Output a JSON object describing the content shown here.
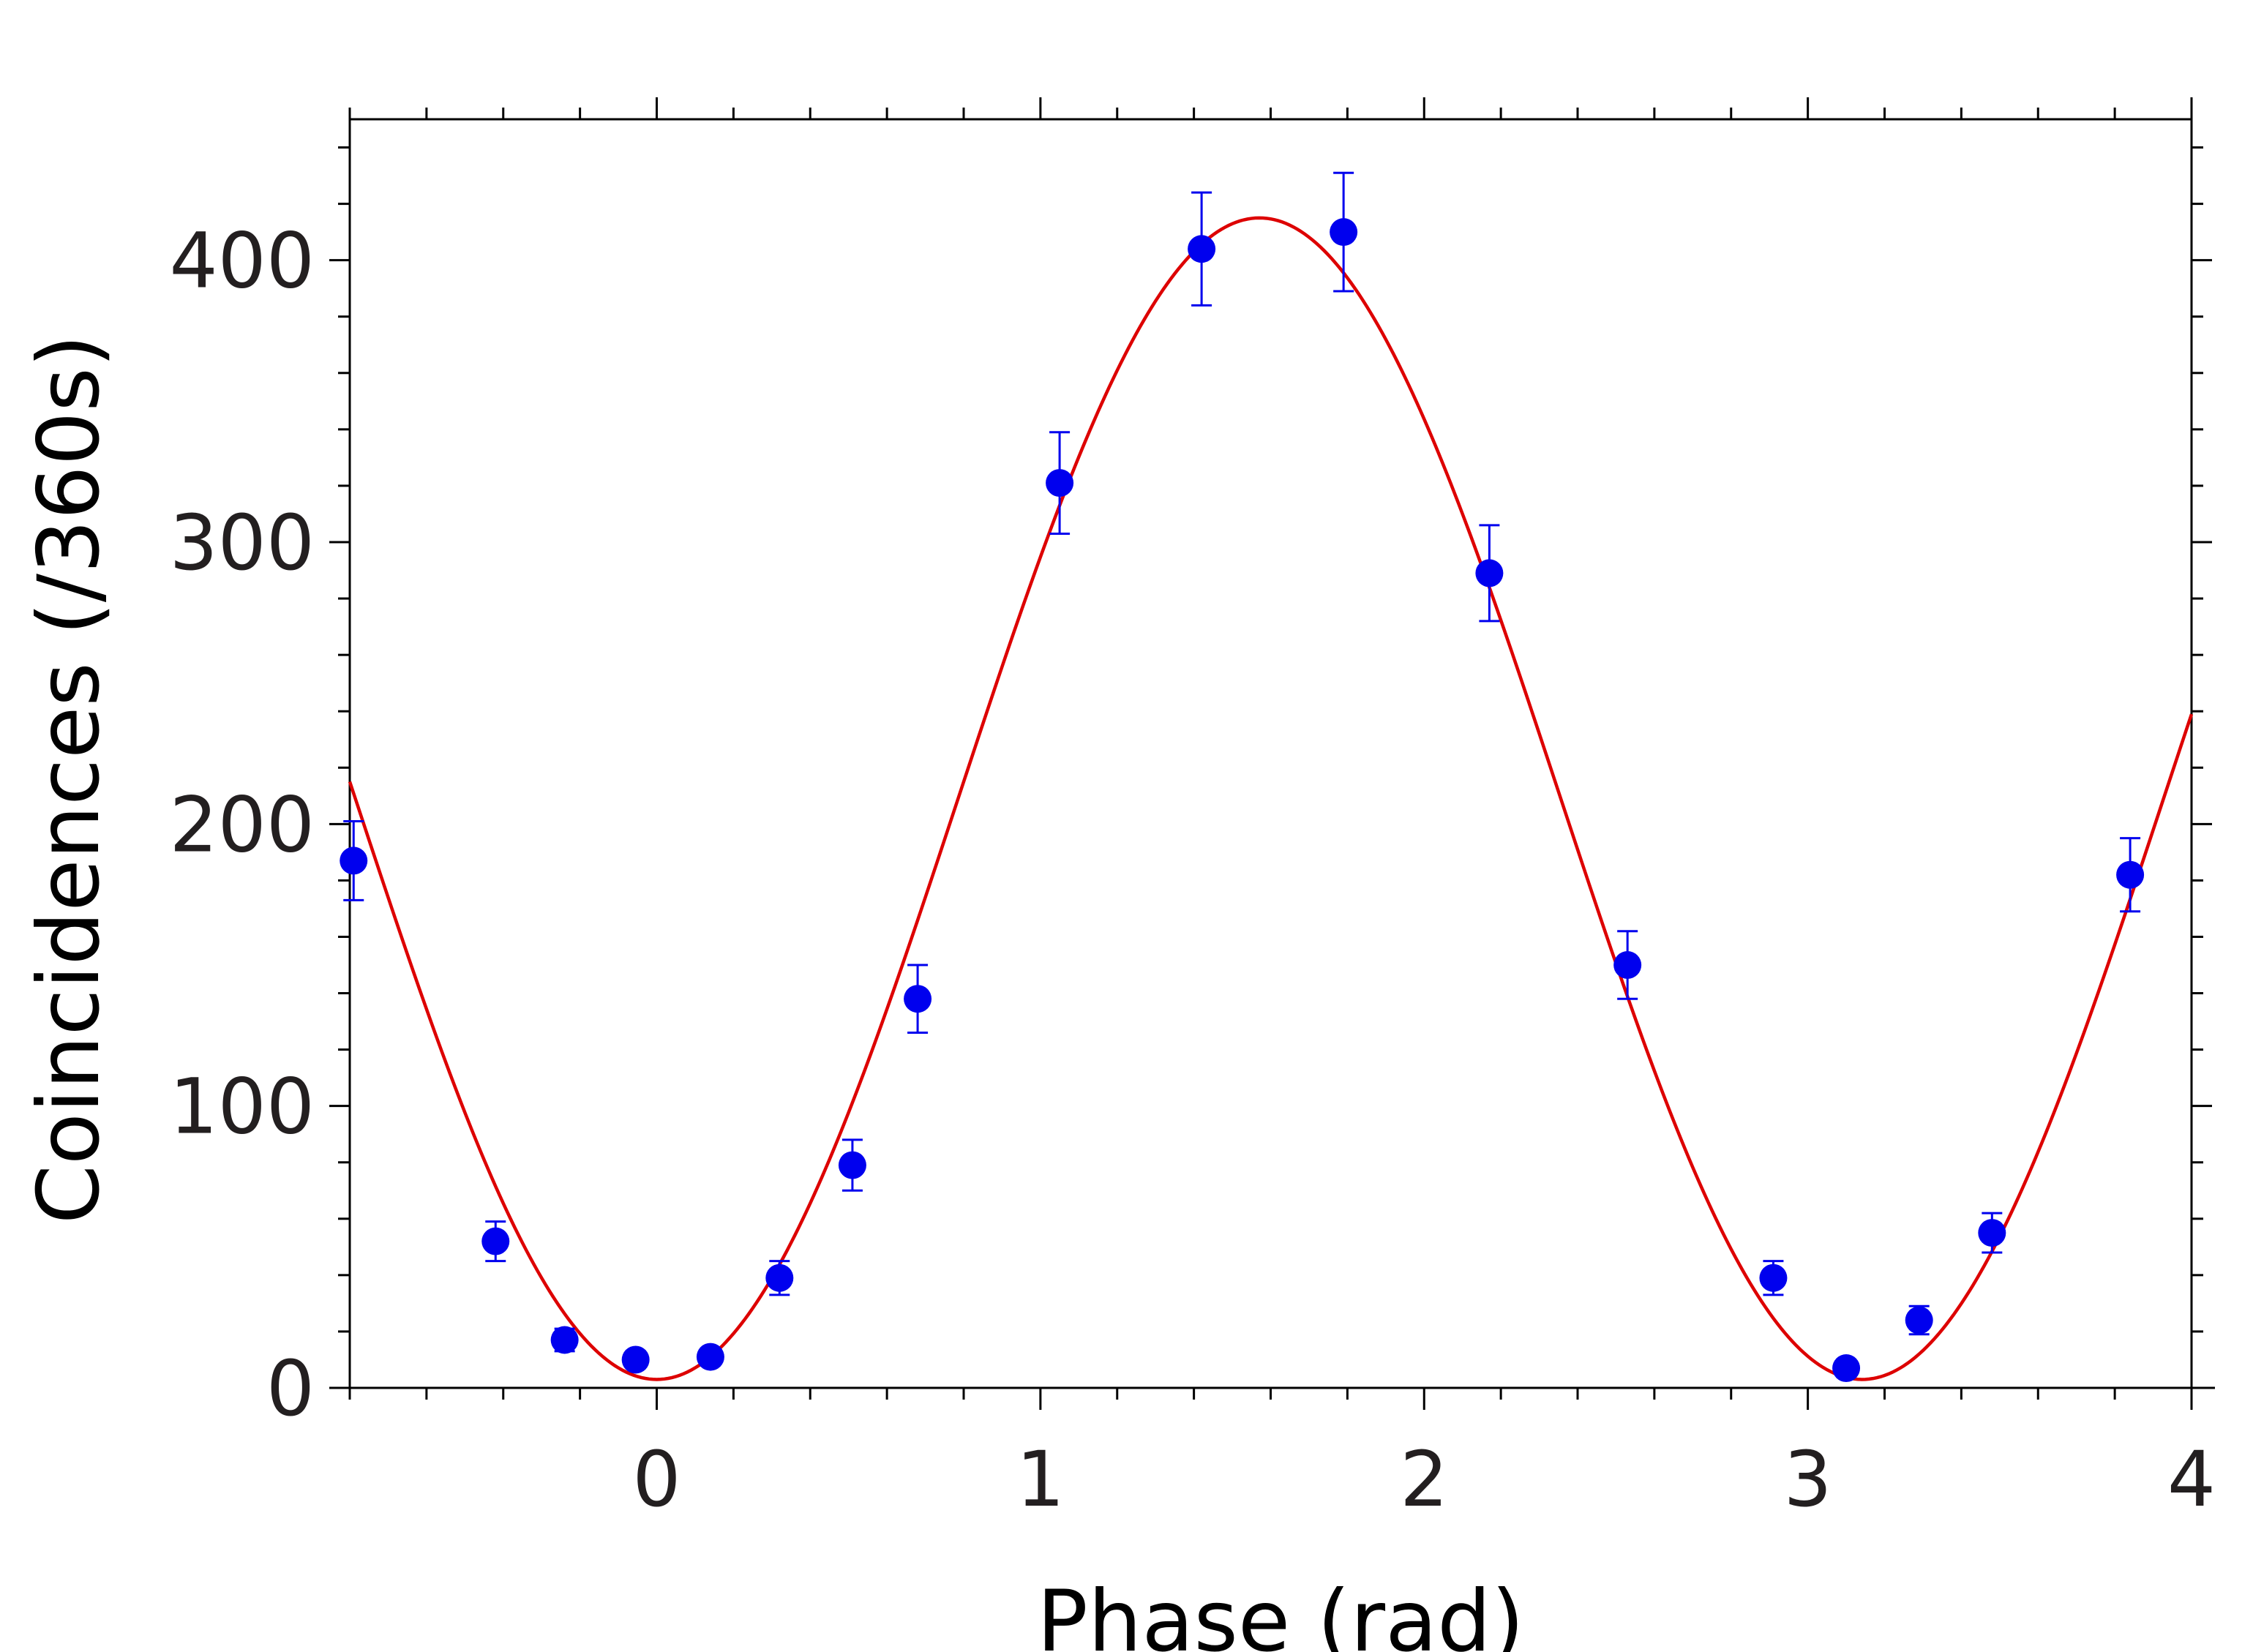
{
  "chart_data": {
    "type": "scatter",
    "title": "",
    "xlabel": "Phase (rad)",
    "ylabel": "Coincidences (/360s)",
    "xlim": [
      -0.8,
      4
    ],
    "ylim": [
      0,
      450
    ],
    "x_ticks": [
      0,
      1,
      2,
      3,
      4
    ],
    "y_ticks": [
      0,
      100,
      200,
      300,
      400
    ],
    "grid": false,
    "legend": "none",
    "colors": {
      "points": "#0000ee",
      "fit": "#dd0000",
      "axes": "#000000"
    },
    "series": [
      {
        "kind": "points-with-error-bars",
        "x": [
          -0.79,
          -0.42,
          -0.24,
          -0.055,
          0.14,
          0.32,
          0.51,
          0.68,
          1.05,
          1.42,
          1.79,
          2.17,
          2.53,
          2.91,
          3.1,
          3.29,
          3.48,
          3.84
        ],
        "y": [
          187,
          52,
          17,
          10,
          11,
          39,
          79,
          138,
          321,
          404,
          410,
          289,
          150,
          39,
          7,
          24,
          55,
          182
        ],
        "err": [
          14,
          7,
          4,
          3,
          3,
          6,
          9,
          12,
          18,
          20,
          21,
          17,
          12,
          6,
          3,
          5,
          7,
          13
        ]
      },
      {
        "kind": "fit-curve",
        "formula": "y = 209 - 206*cos(2*x)",
        "offset": 209,
        "amplitude": 206,
        "frequency": 2
      }
    ]
  }
}
